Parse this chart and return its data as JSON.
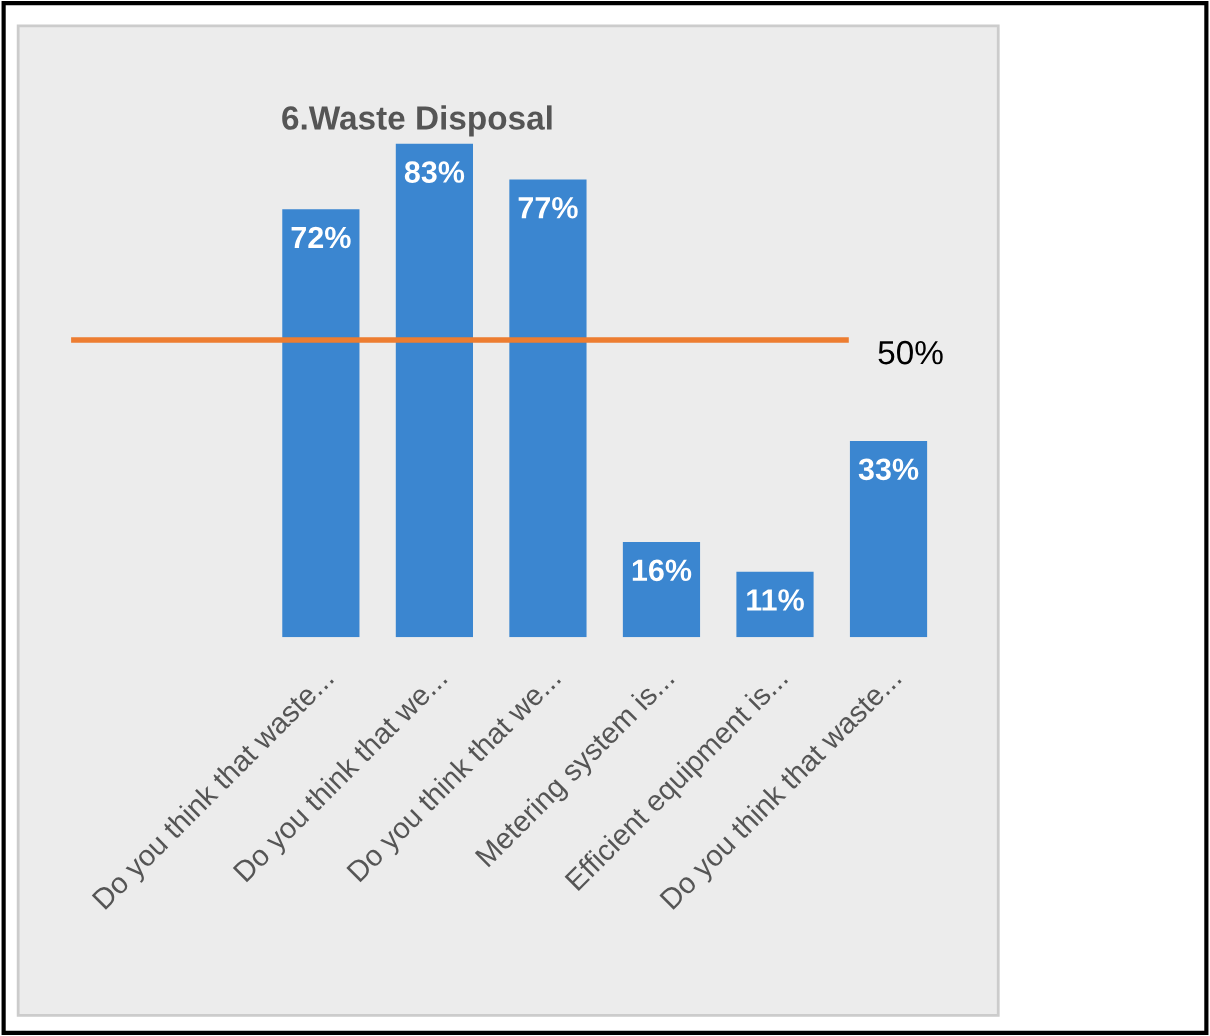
{
  "chart_data": {
    "type": "bar",
    "title": "6.Waste Disposal",
    "categories": [
      "Do you think that waste...",
      "Do you think that we...",
      "Do you think that we...",
      "Metering system is...",
      "Efficient equipment is...",
      "Do you think that waste..."
    ],
    "values": [
      72,
      83,
      77,
      16,
      11,
      33
    ],
    "value_labels": [
      "72%",
      "83%",
      "77%",
      "16%",
      "11%",
      "33%"
    ],
    "color": "#3b86d0",
    "tick_labels": "x",
    "ref_lines": [
      {
        "axis": "y",
        "value": 50,
        "label": "50%",
        "color": "#ed7d31",
        "line_style": "solid"
      }
    ],
    "grid": false,
    "legend": false
  }
}
